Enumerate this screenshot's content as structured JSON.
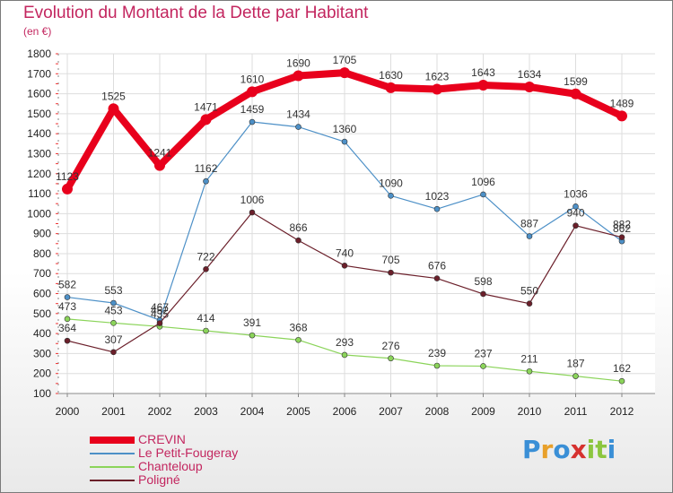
{
  "title": "Evolution du Montant de la Dette par Habitant",
  "subtitle": "(en €)",
  "logo": {
    "letters": [
      "P",
      "r",
      "o",
      "x",
      "i",
      "t",
      "i"
    ],
    "colors": [
      "#3a8fd6",
      "#e8a02a",
      "#3a8fd6",
      "#d6312f",
      "#8cc63f",
      "#8cc63f",
      "#3a8fd6"
    ]
  },
  "chart_data": {
    "type": "line",
    "x": [
      "2000",
      "2001",
      "2002",
      "2003",
      "2004",
      "2005",
      "2006",
      "2007",
      "2008",
      "2009",
      "2010",
      "2011",
      "2012"
    ],
    "ylim": [
      100,
      1800
    ],
    "yticks": [
      100,
      200,
      300,
      400,
      500,
      600,
      700,
      800,
      900,
      1000,
      1100,
      1200,
      1300,
      1400,
      1500,
      1600,
      1700,
      1800
    ],
    "grid": true,
    "legend_position": "bottom-left",
    "series": [
      {
        "name": "CREVIN",
        "color": "#e8001c",
        "width": 8,
        "values": [
          1123,
          1525,
          1241,
          1471,
          1610,
          1690,
          1705,
          1630,
          1623,
          1643,
          1634,
          1599,
          1489
        ]
      },
      {
        "name": "Le Petit-Fougeray",
        "color": "#4d90c7",
        "width": 1.2,
        "values": [
          582,
          553,
          467,
          1162,
          1459,
          1434,
          1360,
          1090,
          1023,
          1096,
          887,
          1036,
          862
        ]
      },
      {
        "name": "Chanteloup",
        "color": "#8bd45a",
        "width": 1.2,
        "values": [
          473,
          453,
          435,
          414,
          391,
          368,
          293,
          276,
          239,
          237,
          211,
          187,
          162
        ]
      },
      {
        "name": "Poligné",
        "color": "#6b1f2a",
        "width": 1.2,
        "values": [
          364,
          307,
          452,
          722,
          1006,
          866,
          740,
          705,
          676,
          598,
          550,
          940,
          882
        ]
      }
    ]
  }
}
